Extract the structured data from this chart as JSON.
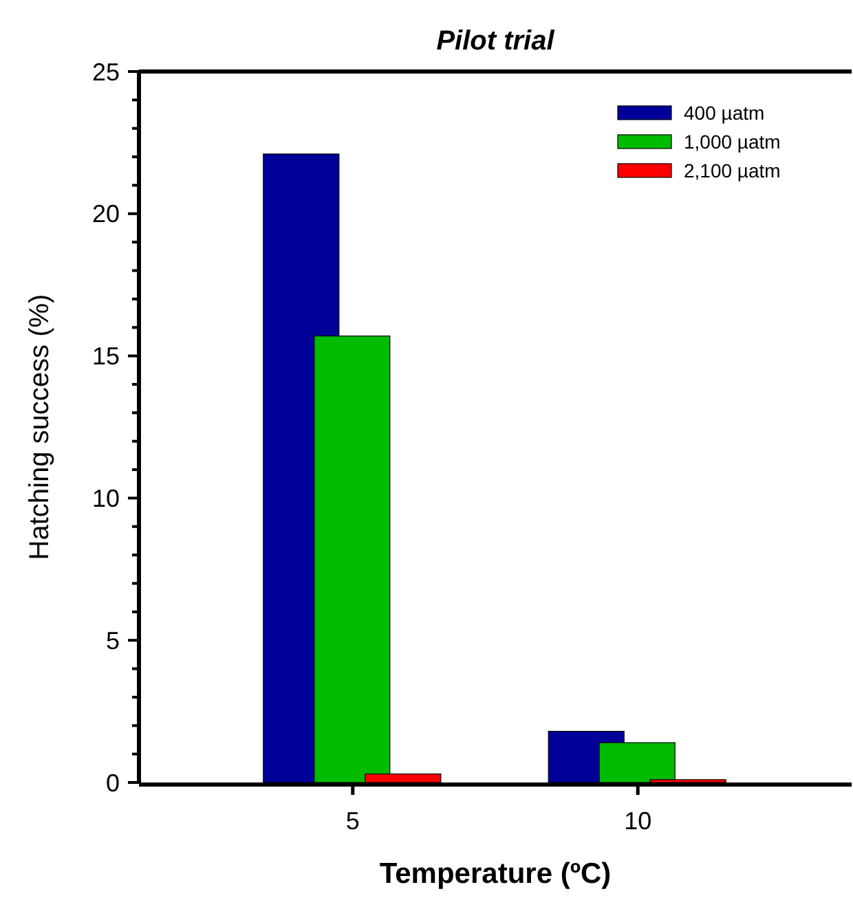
{
  "chart_data": {
    "type": "bar",
    "title": "Pilot trial",
    "xlabel": "Temperature (ºC)",
    "ylabel": "Hatching success (%)",
    "categories": [
      "5",
      "10"
    ],
    "series": [
      {
        "name": "400 µatm",
        "color": "#000099",
        "values": [
          22.1,
          1.8
        ]
      },
      {
        "name": "1,000 µatm",
        "color": "#00bb00",
        "values": [
          15.7,
          1.4
        ]
      },
      {
        "name": "2,100 µatm",
        "color": "#ff0000",
        "values": [
          0.3,
          0.1
        ]
      }
    ],
    "ylim": [
      0,
      25
    ],
    "yticks": [
      0,
      {
        "value": 1,
        "label": null
      },
      {
        "value": 2,
        "label": null
      },
      {
        "value": 3,
        "label": null
      },
      {
        "value": 4,
        "label": null
      },
      5,
      {
        "value": 6,
        "label": null
      },
      {
        "value": 7,
        "label": null
      },
      {
        "value": 8,
        "label": null
      },
      {
        "value": 9,
        "label": null
      },
      10,
      {
        "value": 11,
        "label": null
      },
      {
        "value": 12,
        "label": null
      },
      {
        "value": 13,
        "label": null
      },
      {
        "value": 14,
        "label": null
      },
      15,
      {
        "value": 16,
        "label": null
      },
      {
        "value": 17,
        "label": null
      },
      {
        "value": 18,
        "label": null
      },
      {
        "value": 19,
        "label": null
      },
      20,
      {
        "value": 21,
        "label": null
      },
      {
        "value": 22,
        "label": null
      },
      {
        "value": 23,
        "label": null
      },
      {
        "value": 24,
        "label": null
      },
      25
    ],
    "grid": false,
    "legend": "top right"
  }
}
